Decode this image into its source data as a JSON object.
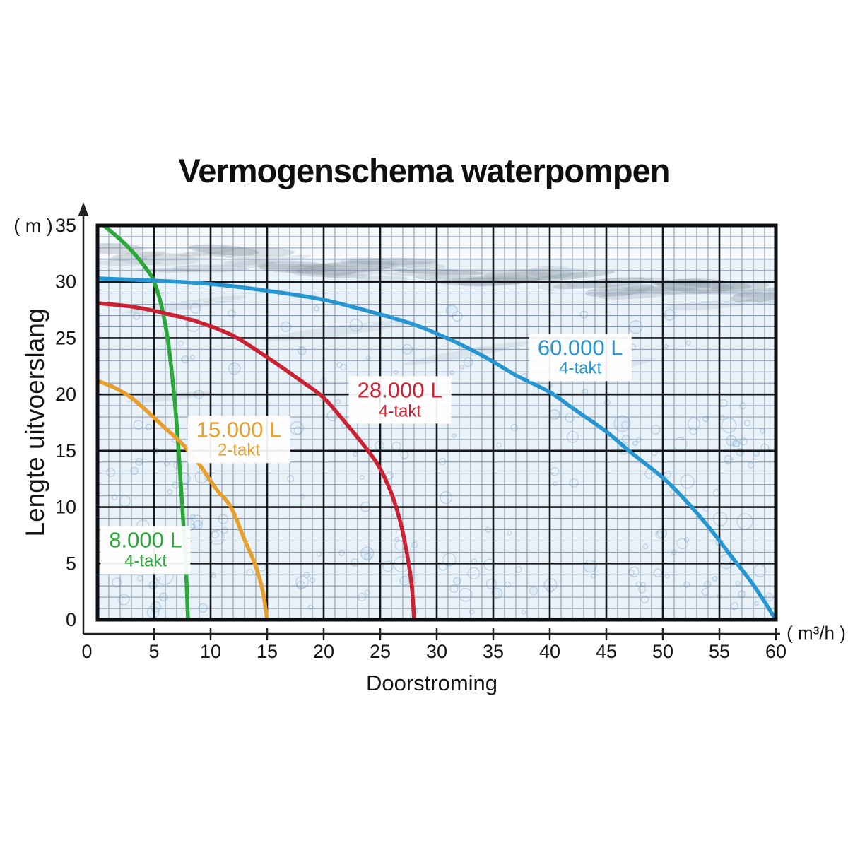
{
  "title": "Vermogenschema waterpompen",
  "chart_data": {
    "type": "line",
    "title": "Vermogenschema waterpompen",
    "xlabel": "Doorstroming",
    "x_unit": "( m³/h )",
    "ylabel": "Lengte uitvoerslang",
    "y_unit": "( m )",
    "xlim": [
      0,
      60
    ],
    "ylim": [
      0,
      35
    ],
    "xticks": [
      0,
      5,
      10,
      15,
      20,
      25,
      30,
      35,
      40,
      45,
      50,
      55,
      60
    ],
    "yticks": [
      0,
      5,
      10,
      15,
      20,
      25,
      30,
      35
    ],
    "grid": "major every 5 units (black), minor every 1 unit (gray), both axes",
    "legend_position": "labels placed on chart next to each curve",
    "background": "light-blue water photo with bubbles and gray wave band near top",
    "axis_color": "#222222",
    "series": [
      {
        "name": "8.000 L",
        "sublabel": "4-takt",
        "color": "#2aa838",
        "label_pos": [
          4.25,
          6.2
        ],
        "points": [
          [
            0.55,
            35
          ],
          [
            1.5,
            34.2
          ],
          [
            2.5,
            33.3
          ],
          [
            3.5,
            32.2
          ],
          [
            4.5,
            30.9
          ],
          [
            5,
            30
          ],
          [
            5.6,
            28.1
          ],
          [
            6.1,
            25.6
          ],
          [
            6.5,
            22.6
          ],
          [
            6.9,
            18.6
          ],
          [
            7.2,
            14.6
          ],
          [
            7.5,
            10
          ],
          [
            7.8,
            5
          ],
          [
            8,
            0
          ]
        ]
      },
      {
        "name": "15.000 L",
        "sublabel": "2-takt",
        "color": "#e89f2b",
        "label_pos": [
          12.5,
          16.0
        ],
        "points": [
          [
            0,
            21.2
          ],
          [
            1.5,
            20.6
          ],
          [
            3,
            19.7
          ],
          [
            4.5,
            18.4
          ],
          [
            6,
            17
          ],
          [
            7.5,
            15.6
          ],
          [
            9,
            13.8
          ],
          [
            10.5,
            11.6
          ],
          [
            11.8,
            10
          ],
          [
            13,
            7.1
          ],
          [
            13.9,
            5
          ],
          [
            14.6,
            2.6
          ],
          [
            15,
            0
          ]
        ]
      },
      {
        "name": "28.000 L",
        "sublabel": "4-takt",
        "color": "#cb2132",
        "label_pos": [
          26.75,
          19.5
        ],
        "points": [
          [
            0,
            28.1
          ],
          [
            3,
            27.8
          ],
          [
            6,
            27.2
          ],
          [
            9,
            26.4
          ],
          [
            12,
            25.2
          ],
          [
            15,
            23.3
          ],
          [
            18,
            21.2
          ],
          [
            20,
            19.7
          ],
          [
            22,
            17.4
          ],
          [
            24,
            14.9
          ],
          [
            25,
            13.4
          ],
          [
            26,
            11.2
          ],
          [
            26.8,
            8.6
          ],
          [
            27.4,
            5.7
          ],
          [
            27.8,
            2.9
          ],
          [
            28,
            0
          ]
        ]
      },
      {
        "name": "60.000 L",
        "sublabel": "4-takt",
        "color": "#2596d2",
        "label_pos": [
          42.7,
          23.3
        ],
        "points": [
          [
            0,
            30.3
          ],
          [
            5,
            30.1
          ],
          [
            10,
            29.8
          ],
          [
            15,
            29.2
          ],
          [
            20,
            28.4
          ],
          [
            25,
            27.1
          ],
          [
            28,
            26.2
          ],
          [
            30,
            25.4
          ],
          [
            33,
            24
          ],
          [
            35,
            22.9
          ],
          [
            37,
            21.7
          ],
          [
            40,
            20.2
          ],
          [
            42,
            18.8
          ],
          [
            45,
            16.7
          ],
          [
            47,
            15
          ],
          [
            50,
            12.6
          ],
          [
            52,
            10.6
          ],
          [
            54,
            8.3
          ],
          [
            56,
            5.7
          ],
          [
            58,
            3.1
          ],
          [
            60,
            0
          ]
        ]
      }
    ]
  }
}
